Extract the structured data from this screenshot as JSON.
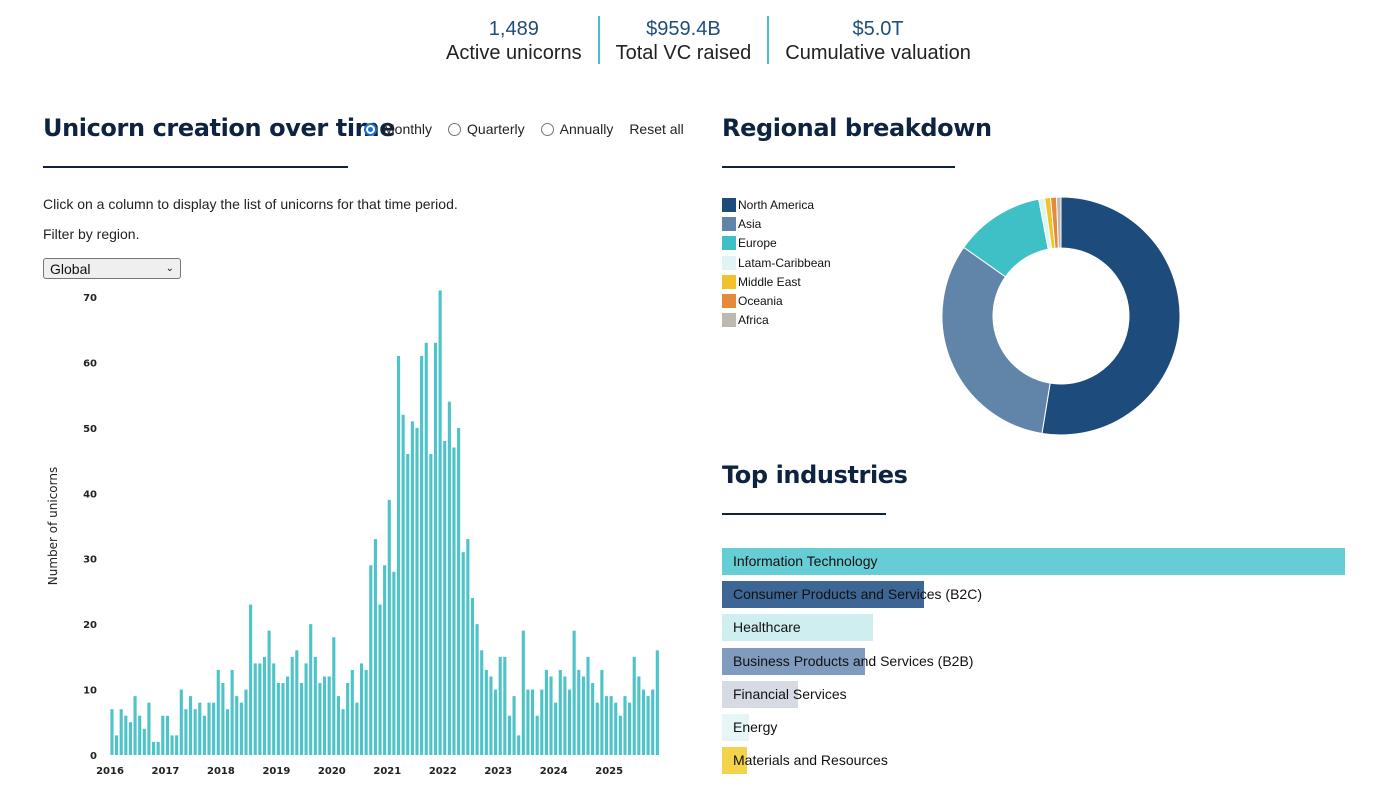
{
  "stats": [
    {
      "value": "1,489",
      "label": "Active unicorns"
    },
    {
      "value": "$959.4B",
      "label": "Total VC raised"
    },
    {
      "value": "$5.0T",
      "label": "Cumulative valuation"
    }
  ],
  "creation": {
    "title": "Unicorn creation over time",
    "radios": [
      "Monthly",
      "Quarterly",
      "Annually"
    ],
    "selected_radio": "Monthly",
    "reset_label": "Reset all",
    "instruction": "Click on a column to display the list of unicorns for that time period.",
    "filter_label": "Filter by region.",
    "region_selected": "Global"
  },
  "regional": {
    "title": "Regional breakdown"
  },
  "industries": {
    "title": "Top industries",
    "items": [
      {
        "label": "Information Technology",
        "value": 100,
        "color": "#67cdd4"
      },
      {
        "label": "Consumer Products and Services (B2C)",
        "value": 32.5,
        "color": "#3e6694"
      },
      {
        "label": "Healthcare",
        "value": 24.3,
        "color": "#cfeef0"
      },
      {
        "label": "Business Products and Services (B2B)",
        "value": 22.9,
        "color": "#7f9cbe"
      },
      {
        "label": "Financial Services",
        "value": 12.2,
        "color": "#d6dae3"
      },
      {
        "label": "Energy",
        "value": 4.3,
        "color": "#e6f6f6"
      },
      {
        "label": "Materials and Resources",
        "value": 4.0,
        "color": "#f2d34a"
      }
    ]
  },
  "chart_data": [
    {
      "type": "bar",
      "title": "Unicorn creation over time",
      "xlabel": "",
      "ylabel": "Number of unicorns",
      "ylim": [
        0,
        70
      ],
      "yticks": [
        0,
        10,
        20,
        30,
        40,
        50,
        60,
        70
      ],
      "xtick_labels": [
        "2016",
        "2017",
        "2018",
        "2019",
        "2020",
        "2021",
        "2022",
        "2023",
        "2024",
        "2025"
      ],
      "start": "2016-01",
      "bar_color": "#4cc4c8",
      "values": [
        7,
        3,
        7,
        6,
        5,
        9,
        6,
        4,
        8,
        2,
        2,
        6,
        6,
        3,
        3,
        10,
        7,
        9,
        7,
        8,
        6,
        8,
        8,
        13,
        11,
        7,
        13,
        9,
        8,
        10,
        23,
        14,
        14,
        15,
        19,
        14,
        11,
        11,
        12,
        15,
        16,
        11,
        14,
        20,
        15,
        11,
        12,
        12,
        18,
        9,
        7,
        11,
        13,
        8,
        14,
        13,
        29,
        33,
        23,
        29,
        39,
        28,
        61,
        52,
        46,
        51,
        50,
        61,
        63,
        46,
        63,
        71,
        48,
        54,
        47,
        50,
        31,
        33,
        24,
        20,
        16,
        13,
        12,
        10,
        15,
        15,
        6,
        9,
        3,
        19,
        10,
        10,
        6,
        10,
        13,
        12,
        8,
        13,
        12,
        10,
        19,
        13,
        12,
        15,
        11,
        8,
        13,
        9,
        9,
        8,
        6,
        9,
        8,
        15,
        12,
        10,
        9,
        10,
        16
      ]
    },
    {
      "type": "pie",
      "title": "Regional breakdown",
      "labels": [
        "North America",
        "Asia",
        "Europe",
        "Latam-Caribbean",
        "Middle East",
        "Oceania",
        "Africa"
      ],
      "values": [
        52.5,
        32.2,
        12.2,
        0.8,
        0.8,
        0.8,
        0.6
      ],
      "colors": [
        "#1d4c7c",
        "#6185a8",
        "#3fc0c6",
        "#dff4f4",
        "#f2c12e",
        "#e58a3a",
        "#bfb8ae"
      ]
    }
  ]
}
